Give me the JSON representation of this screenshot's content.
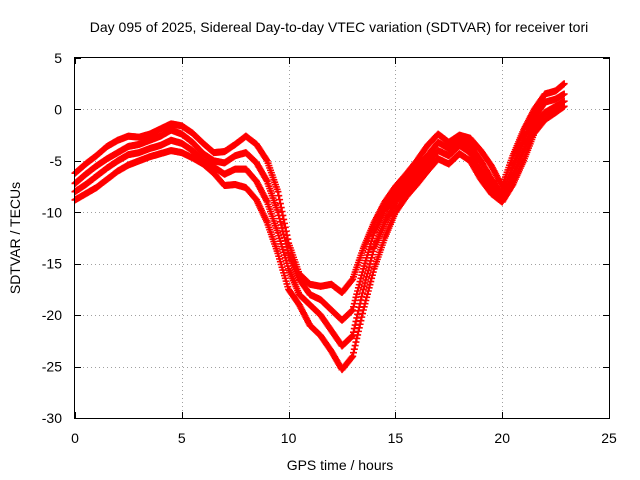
{
  "chart_data": {
    "type": "scatter",
    "title": "Day 095 of 2025, Sidereal Day-to-day VTEC variation (SDTVAR) for receiver tori",
    "xlabel": "GPS time / hours",
    "ylabel": "SDTVAR / TECUs",
    "xlim": [
      0,
      25
    ],
    "ylim": [
      -30,
      5
    ],
    "xticks": [
      0,
      5,
      10,
      15,
      20,
      25
    ],
    "yticks": [
      5,
      0,
      -5,
      -10,
      -15,
      -20,
      -25,
      -30
    ],
    "grid": true,
    "grid_style": "dotted",
    "marker": "plus",
    "series_color": "#ff0000",
    "series": [
      {
        "points": [
          [
            0,
            -6.2
          ],
          [
            0.5,
            -5.3
          ],
          [
            1,
            -4.5
          ],
          [
            1.5,
            -3.6
          ],
          [
            2,
            -3.0
          ],
          [
            2.5,
            -2.6
          ],
          [
            3,
            -2.7
          ],
          [
            3.5,
            -2.4
          ],
          [
            4,
            -1.9
          ],
          [
            4.5,
            -1.4
          ],
          [
            5,
            -1.6
          ],
          [
            5.5,
            -2.3
          ],
          [
            6,
            -3.3
          ],
          [
            6.5,
            -4.2
          ],
          [
            7,
            -4.1
          ],
          [
            7.5,
            -3.4
          ],
          [
            8,
            -2.6
          ],
          [
            8.5,
            -3.4
          ],
          [
            9,
            -5.0
          ],
          [
            9.5,
            -8.0
          ],
          [
            10,
            -13.0
          ],
          [
            10.5,
            -16.0
          ],
          [
            11,
            -17.0
          ],
          [
            11.5,
            -17.2
          ],
          [
            12,
            -17.0
          ],
          [
            12.5,
            -17.8
          ],
          [
            13,
            -16.5
          ],
          [
            13.5,
            -13.5
          ],
          [
            14,
            -11.0
          ],
          [
            14.5,
            -9.0
          ],
          [
            15,
            -7.5
          ],
          [
            15.5,
            -6.3
          ],
          [
            16,
            -5.0
          ],
          [
            16.5,
            -3.5
          ],
          [
            17,
            -2.4
          ],
          [
            17.5,
            -3.2
          ],
          [
            18,
            -2.5
          ],
          [
            18.5,
            -2.8
          ],
          [
            19,
            -4.0
          ],
          [
            19.5,
            -5.5
          ],
          [
            20,
            -7.5
          ],
          [
            20.5,
            -4.5
          ],
          [
            21,
            -2.0
          ],
          [
            21.5,
            0.0
          ],
          [
            22,
            1.5
          ],
          [
            22.5,
            1.8
          ],
          [
            22.9,
            2.5
          ]
        ]
      },
      {
        "points": [
          [
            0,
            -7.2
          ],
          [
            0.5,
            -6.3
          ],
          [
            1,
            -5.5
          ],
          [
            1.5,
            -4.8
          ],
          [
            2,
            -4.2
          ],
          [
            2.5,
            -3.6
          ],
          [
            3,
            -3.4
          ],
          [
            3.5,
            -3.0
          ],
          [
            4,
            -2.6
          ],
          [
            4.5,
            -2.0
          ],
          [
            5,
            -2.4
          ],
          [
            5.5,
            -3.2
          ],
          [
            6,
            -4.3
          ],
          [
            6.5,
            -5.0
          ],
          [
            7,
            -5.2
          ],
          [
            7.5,
            -4.5
          ],
          [
            8,
            -4.2
          ],
          [
            8.5,
            -5.2
          ],
          [
            9,
            -7.0
          ],
          [
            9.5,
            -10.0
          ],
          [
            10,
            -14.0
          ],
          [
            10.5,
            -16.5
          ],
          [
            11,
            -18.0
          ],
          [
            11.5,
            -18.5
          ],
          [
            12,
            -19.5
          ],
          [
            12.5,
            -20.5
          ],
          [
            13,
            -19.5
          ],
          [
            13.5,
            -15.5
          ],
          [
            14,
            -12.0
          ],
          [
            14.5,
            -9.8
          ],
          [
            15,
            -8.3
          ],
          [
            15.5,
            -7.0
          ],
          [
            16,
            -5.8
          ],
          [
            16.5,
            -4.5
          ],
          [
            17,
            -3.2
          ],
          [
            17.5,
            -3.8
          ],
          [
            18,
            -3.0
          ],
          [
            18.5,
            -3.5
          ],
          [
            19,
            -5.0
          ],
          [
            19.5,
            -6.8
          ],
          [
            20,
            -8.3
          ],
          [
            20.5,
            -5.5
          ],
          [
            21,
            -3.0
          ],
          [
            21.5,
            -0.8
          ],
          [
            22,
            0.7
          ],
          [
            22.5,
            1.0
          ],
          [
            22.9,
            1.5
          ]
        ]
      },
      {
        "points": [
          [
            0,
            -8.0
          ],
          [
            0.5,
            -7.3
          ],
          [
            1,
            -6.5
          ],
          [
            1.5,
            -5.7
          ],
          [
            2,
            -5.0
          ],
          [
            2.5,
            -4.4
          ],
          [
            3,
            -4.2
          ],
          [
            3.5,
            -3.8
          ],
          [
            4,
            -3.5
          ],
          [
            4.5,
            -3.0
          ],
          [
            5,
            -3.3
          ],
          [
            5.5,
            -4.0
          ],
          [
            6,
            -5.0
          ],
          [
            6.5,
            -5.6
          ],
          [
            7,
            -6.3
          ],
          [
            7.5,
            -5.8
          ],
          [
            8,
            -5.8
          ],
          [
            8.5,
            -7.0
          ],
          [
            9,
            -9.0
          ],
          [
            9.5,
            -12.0
          ],
          [
            10,
            -15.5
          ],
          [
            10.5,
            -18.0
          ],
          [
            11,
            -19.0
          ],
          [
            11.5,
            -20.0
          ],
          [
            12,
            -21.5
          ],
          [
            12.5,
            -23.0
          ],
          [
            13,
            -22.0
          ],
          [
            13.5,
            -17.5
          ],
          [
            14,
            -13.5
          ],
          [
            14.5,
            -11.0
          ],
          [
            15,
            -9.0
          ],
          [
            15.5,
            -7.8
          ],
          [
            16,
            -6.5
          ],
          [
            16.5,
            -5.3
          ],
          [
            17,
            -4.0
          ],
          [
            17.5,
            -4.5
          ],
          [
            18,
            -3.5
          ],
          [
            18.5,
            -4.2
          ],
          [
            19,
            -6.0
          ],
          [
            19.5,
            -7.5
          ],
          [
            20,
            -8.8
          ],
          [
            20.5,
            -6.5
          ],
          [
            21,
            -4.0
          ],
          [
            21.5,
            -1.5
          ],
          [
            22,
            -0.3
          ],
          [
            22.5,
            0.3
          ],
          [
            22.9,
            0.8
          ]
        ]
      },
      {
        "points": [
          [
            0,
            -8.8
          ],
          [
            0.5,
            -8.2
          ],
          [
            1,
            -7.6
          ],
          [
            1.5,
            -6.8
          ],
          [
            2,
            -6.0
          ],
          [
            2.5,
            -5.4
          ],
          [
            3,
            -5.0
          ],
          [
            3.5,
            -4.6
          ],
          [
            4,
            -4.3
          ],
          [
            4.5,
            -4.0
          ],
          [
            5,
            -4.2
          ],
          [
            5.5,
            -4.7
          ],
          [
            6,
            -5.3
          ],
          [
            6.5,
            -6.2
          ],
          [
            7,
            -7.4
          ],
          [
            7.5,
            -7.3
          ],
          [
            8,
            -7.6
          ],
          [
            8.5,
            -8.8
          ],
          [
            9,
            -11.0
          ],
          [
            9.5,
            -14.0
          ],
          [
            10,
            -17.5
          ],
          [
            10.5,
            -19.0
          ],
          [
            11,
            -21.0
          ],
          [
            11.5,
            -22.0
          ],
          [
            12,
            -23.5
          ],
          [
            12.5,
            -25.3
          ],
          [
            13,
            -24.0
          ],
          [
            13.5,
            -19.5
          ],
          [
            14,
            -15.5
          ],
          [
            14.5,
            -12.5
          ],
          [
            15,
            -10.0
          ],
          [
            15.5,
            -8.5
          ],
          [
            16,
            -7.3
          ],
          [
            16.5,
            -6.0
          ],
          [
            17,
            -4.8
          ],
          [
            17.5,
            -5.3
          ],
          [
            18,
            -4.3
          ],
          [
            18.5,
            -5.0
          ],
          [
            19,
            -6.8
          ],
          [
            19.5,
            -8.2
          ],
          [
            20,
            -9.0
          ],
          [
            20.5,
            -7.3
          ],
          [
            21,
            -5.0
          ],
          [
            21.5,
            -2.3
          ],
          [
            22,
            -1.0
          ],
          [
            22.5,
            -0.3
          ],
          [
            22.9,
            0.3
          ]
        ]
      }
    ]
  }
}
